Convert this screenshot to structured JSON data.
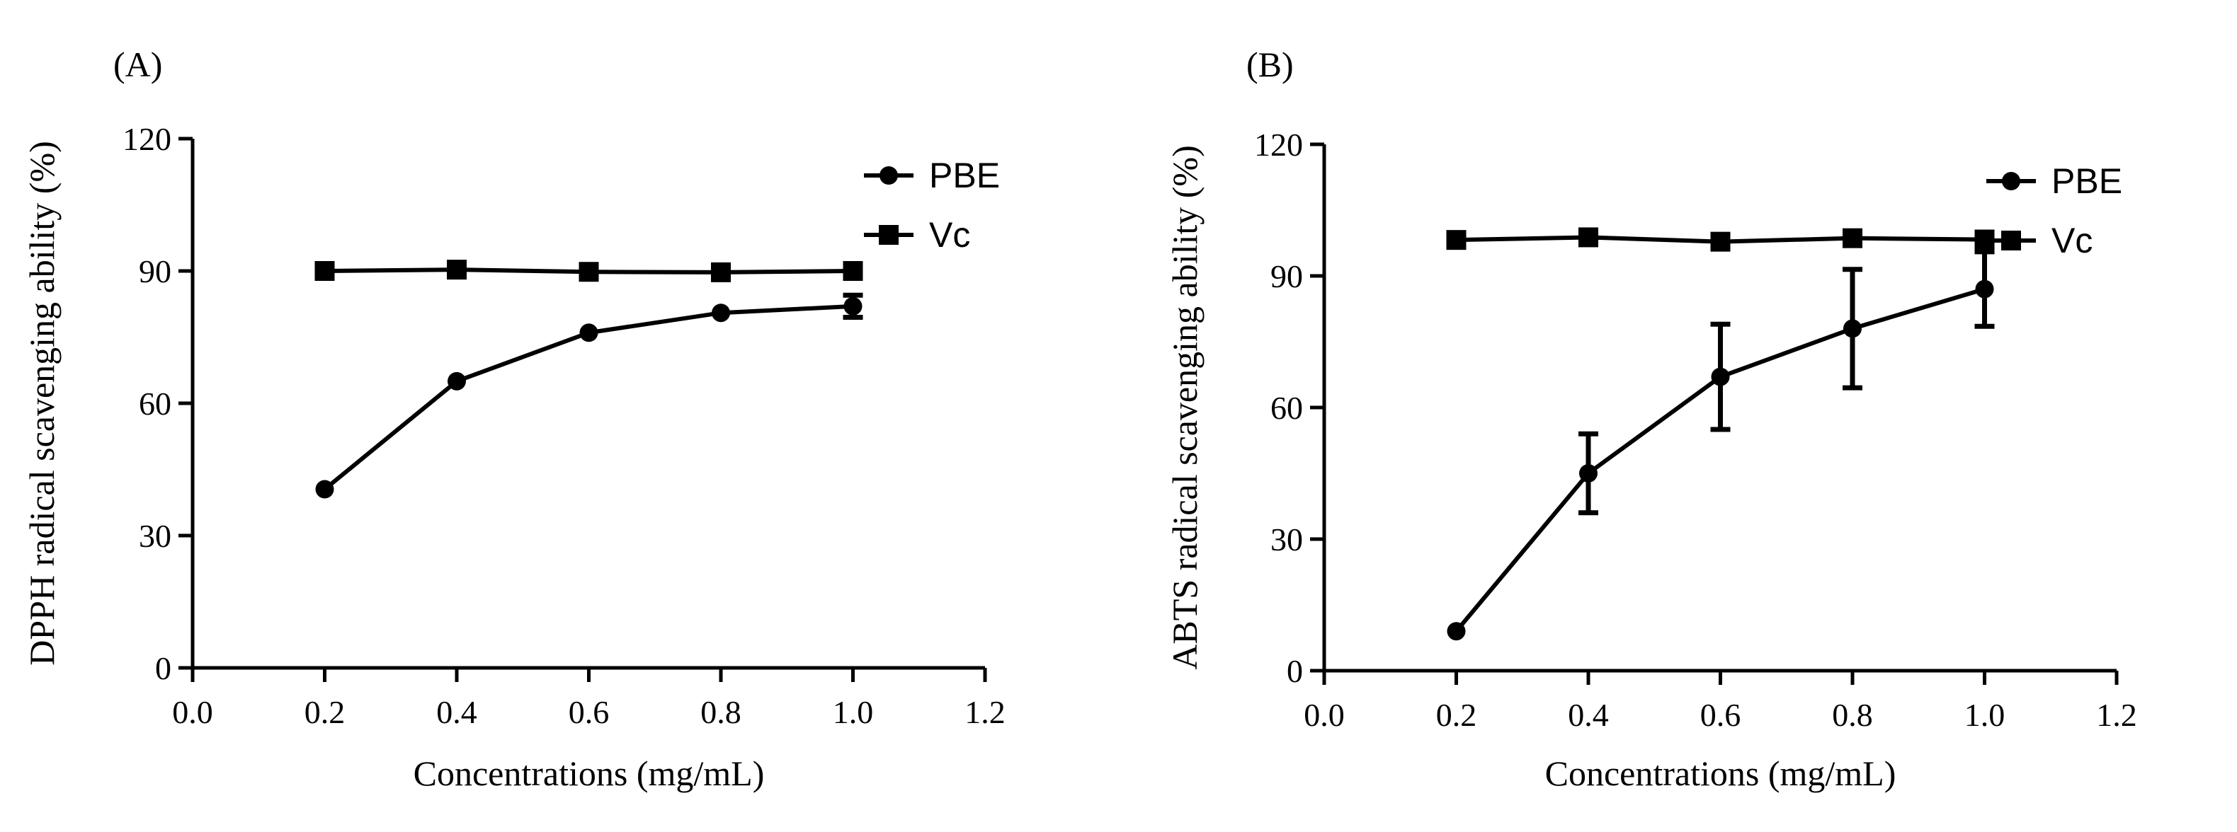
{
  "chart_data": [
    {
      "type": "line",
      "panel_label": "(A)",
      "xlabel": "Concentrations (mg/mL)",
      "ylabel": "DPPH radical scavenging ability  (%)",
      "xlim": [
        0.0,
        1.2
      ],
      "ylim": [
        0,
        120
      ],
      "xticks": [
        0.0,
        0.2,
        0.4,
        0.6,
        0.8,
        1.0,
        1.2
      ],
      "xtick_labels": [
        "0.0",
        "0.2",
        "0.4",
        "0.6",
        "0.8",
        "1.0",
        "1.2"
      ],
      "yticks": [
        0,
        30,
        60,
        90,
        120
      ],
      "ytick_labels": [
        "0",
        "30",
        "60",
        "90",
        "120"
      ],
      "grid": false,
      "legend_position": "top-right",
      "x": [
        0.2,
        0.4,
        0.6,
        0.8,
        1.0
      ],
      "series": [
        {
          "name": "PBE",
          "marker": "circle",
          "values": [
            40.5,
            65,
            76,
            80.5,
            82
          ],
          "errors": [
            0,
            0,
            0,
            0,
            2.5
          ]
        },
        {
          "name": "Vc",
          "marker": "square",
          "values": [
            90,
            90.3,
            89.8,
            89.7,
            90
          ],
          "errors": [
            0,
            0,
            0,
            0,
            0
          ]
        }
      ]
    },
    {
      "type": "line",
      "panel_label": "(B)",
      "xlabel": "Concentrations (mg/mL)",
      "ylabel": "ABTS radical scavenging ability (%)",
      "xlim": [
        0.0,
        1.2
      ],
      "ylim": [
        0,
        120
      ],
      "xticks": [
        0.0,
        0.2,
        0.4,
        0.6,
        0.8,
        1.0,
        1.2
      ],
      "xtick_labels": [
        "0.0",
        "0.2",
        "0.4",
        "0.6",
        "0.8",
        "1.0",
        "1.2"
      ],
      "yticks": [
        0,
        30,
        60,
        90,
        120
      ],
      "ytick_labels": [
        "0",
        "30",
        "60",
        "90",
        "120"
      ],
      "grid": false,
      "legend_position": "top-right",
      "x": [
        0.2,
        0.4,
        0.6,
        0.8,
        1.0
      ],
      "series": [
        {
          "name": "PBE",
          "marker": "circle",
          "values": [
            9,
            45,
            67,
            78,
            87
          ],
          "errors": [
            0,
            9,
            12,
            13.5,
            8.5
          ]
        },
        {
          "name": "Vc",
          "marker": "square",
          "values": [
            98.2,
            98.8,
            97.8,
            98.6,
            98.3
          ],
          "errors": [
            0,
            0,
            0,
            0,
            0
          ]
        }
      ]
    }
  ]
}
